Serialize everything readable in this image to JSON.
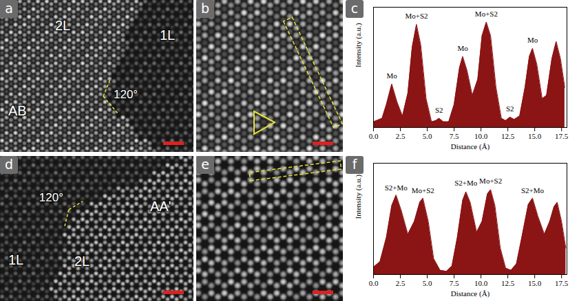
{
  "chart_data": [
    {
      "panel_label": "c",
      "type": "area",
      "color": "#8b1414",
      "xlabel": "Distance (Å)",
      "ylabel": "Intensity (a.u.)",
      "x": [
        0.0,
        0.8,
        1.2,
        1.7,
        2.2,
        2.7,
        3.2,
        3.6,
        4.0,
        4.4,
        4.9,
        5.4,
        5.8,
        6.1,
        6.5,
        7.0,
        7.5,
        8.0,
        8.3,
        8.7,
        9.2,
        9.7,
        10.1,
        10.5,
        10.9,
        11.4,
        11.9,
        12.3,
        12.7,
        13.1,
        13.6,
        14.1,
        14.5,
        14.8,
        15.2,
        15.7,
        16.1,
        16.6,
        17.0,
        17.4,
        17.8
      ],
      "values": [
        0.05,
        0.08,
        0.2,
        0.38,
        0.22,
        0.1,
        0.3,
        0.7,
        0.9,
        0.72,
        0.25,
        0.05,
        0.06,
        0.08,
        0.05,
        0.05,
        0.2,
        0.52,
        0.62,
        0.5,
        0.28,
        0.42,
        0.8,
        0.92,
        0.8,
        0.35,
        0.08,
        0.06,
        0.09,
        0.07,
        0.1,
        0.35,
        0.62,
        0.69,
        0.55,
        0.25,
        0.28,
        0.6,
        0.75,
        0.6,
        0.35
      ],
      "xlim": [
        0,
        18
      ],
      "ylim": [
        0,
        1.05
      ],
      "xticks": [
        {
          "value": 0,
          "label": "0.0"
        },
        2.5,
        {
          "value": 5,
          "label": "5.0"
        },
        7.5,
        {
          "value": 10,
          "label": "10.0"
        },
        12.5,
        {
          "value": 15,
          "label": "15.0"
        },
        17.5
      ],
      "tick_labels": "x",
      "annotations": [
        {
          "text": "Mo",
          "x": 1.7,
          "y": 0.45
        },
        {
          "text": "Mo+S2",
          "x": 4.0,
          "y": 0.97
        },
        {
          "text": "S2",
          "x": 6.1,
          "y": 0.15
        },
        {
          "text": "Mo",
          "x": 8.3,
          "y": 0.69
        },
        {
          "text": "Mo+S2",
          "x": 10.5,
          "y": 0.99
        },
        {
          "text": "S2",
          "x": 12.7,
          "y": 0.16
        },
        {
          "text": "Mo",
          "x": 14.8,
          "y": 0.76
        }
      ]
    },
    {
      "panel_label": "f",
      "type": "area",
      "color": "#8b1414",
      "xlabel": "Distance (Å)",
      "ylabel": "Intensity (a.u.)",
      "x": [
        0.0,
        0.6,
        1.2,
        1.7,
        2.1,
        2.6,
        3.2,
        3.8,
        4.3,
        4.6,
        5.1,
        5.6,
        6.2,
        6.8,
        7.3,
        7.8,
        8.3,
        8.6,
        9.0,
        9.6,
        10.1,
        10.6,
        10.9,
        11.3,
        11.8,
        12.3,
        12.8,
        13.3,
        13.8,
        14.4,
        14.8,
        15.3,
        15.9,
        16.4,
        16.8,
        17.1,
        17.5,
        17.9
      ],
      "values": [
        0.07,
        0.12,
        0.35,
        0.65,
        0.75,
        0.6,
        0.38,
        0.5,
        0.68,
        0.72,
        0.5,
        0.15,
        0.04,
        0.03,
        0.08,
        0.35,
        0.7,
        0.78,
        0.68,
        0.4,
        0.5,
        0.76,
        0.8,
        0.65,
        0.25,
        0.06,
        0.04,
        0.1,
        0.35,
        0.66,
        0.72,
        0.55,
        0.38,
        0.5,
        0.64,
        0.68,
        0.5,
        0.25
      ],
      "xlim": [
        0,
        18
      ],
      "ylim": [
        0,
        1.05
      ],
      "xticks": [
        {
          "value": 0,
          "label": "0.0"
        },
        2.5,
        {
          "value": 5,
          "label": "5.0"
        },
        7.5,
        {
          "value": 10,
          "label": "10.0"
        },
        12.5,
        {
          "value": 15,
          "label": "15.0"
        },
        17.5
      ],
      "tick_labels": "x",
      "annotations": [
        {
          "text": "S2+Mo",
          "x": 2.1,
          "y": 0.82
        },
        {
          "text": "Mo+S2",
          "x": 4.6,
          "y": 0.79
        },
        {
          "text": "S2+Mo",
          "x": 8.6,
          "y": 0.86
        },
        {
          "text": "Mo+S2",
          "x": 10.9,
          "y": 0.88
        },
        {
          "text": "S2+Mo",
          "x": 14.8,
          "y": 0.79
        }
      ]
    }
  ],
  "images": [
    {
      "panel_label": "a",
      "labels": [
        "2L",
        "1L",
        "AB",
        "120°"
      ]
    },
    {
      "panel_label": "b"
    },
    {
      "panel_label": "d",
      "labels": [
        "120°",
        "1L",
        "2L",
        "AA'"
      ]
    },
    {
      "panel_label": "e"
    }
  ]
}
